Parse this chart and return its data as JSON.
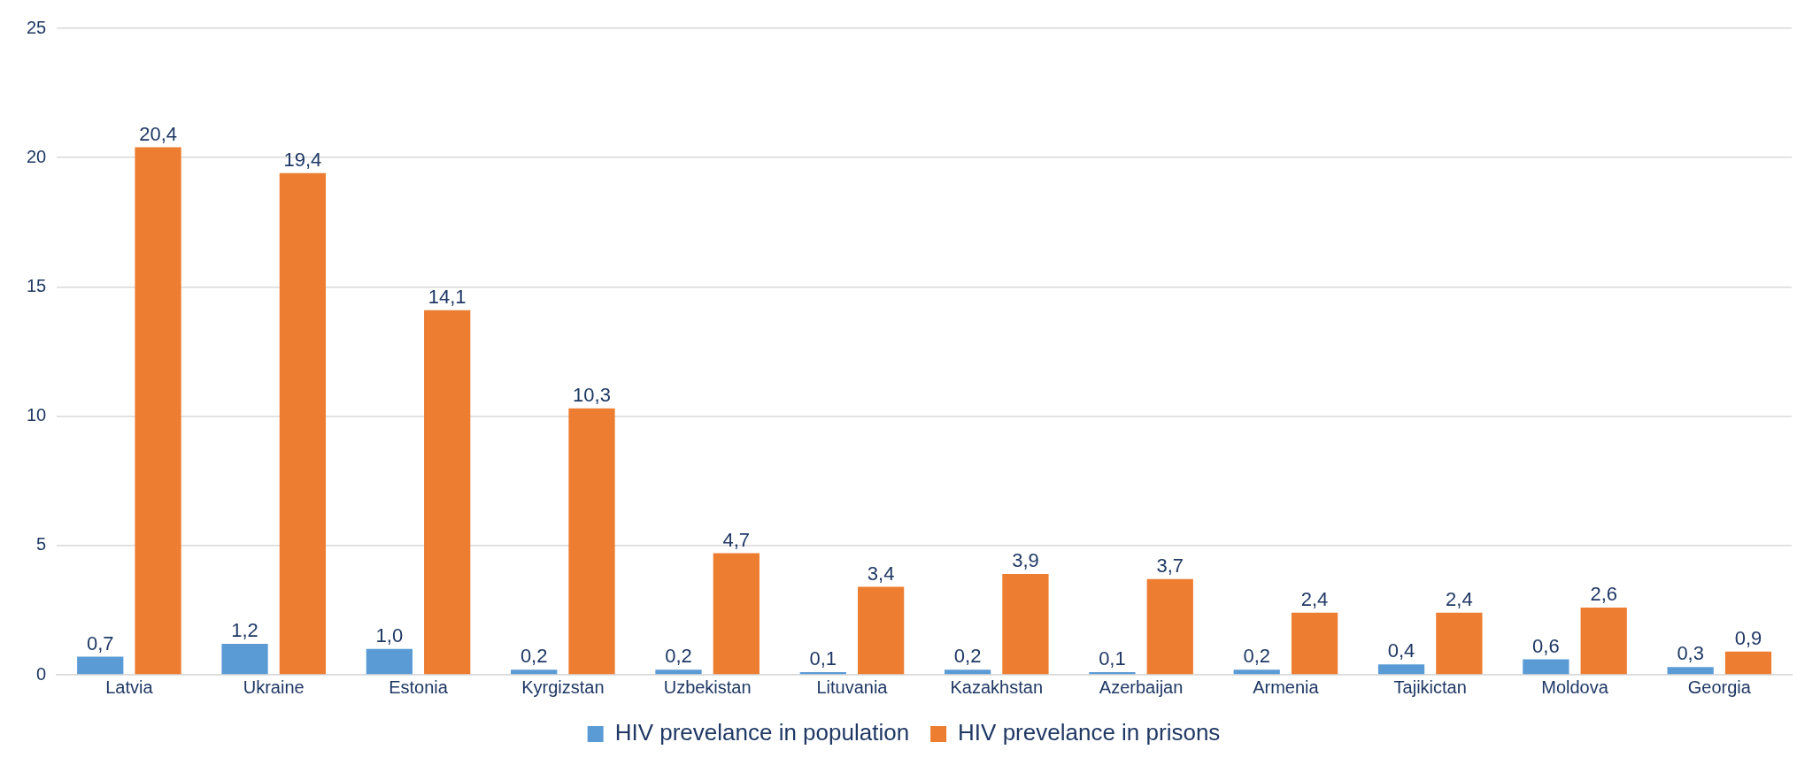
{
  "chart_data": {
    "type": "bar",
    "categories": [
      "Latvia",
      "Ukraine",
      "Estonia",
      "Kyrgizstan",
      "Uzbekistan",
      "Lituvania",
      "Kazakhstan",
      "Azerbaijan",
      "Armenia",
      "Tajikictan",
      "Moldova",
      "Georgia"
    ],
    "series": [
      {
        "name": "HIV prevelance in population",
        "color": "#5b9bd5",
        "values": [
          0.7,
          1.2,
          1.0,
          0.2,
          0.2,
          0.1,
          0.2,
          0.1,
          0.2,
          0.4,
          0.6,
          0.3
        ],
        "value_labels": [
          "0,7",
          "1,2",
          "1,0",
          "0,2",
          "0,2",
          "0,1",
          "0,2",
          "0,1",
          "0,2",
          "0,4",
          "0,6",
          "0,3"
        ]
      },
      {
        "name": "HIV prevelance in prisons",
        "color": "#ed7d31",
        "values": [
          20.4,
          19.4,
          14.1,
          10.3,
          4.7,
          3.4,
          3.9,
          3.7,
          2.4,
          2.4,
          2.6,
          0.9
        ],
        "value_labels": [
          "20,4",
          "19,4",
          "14,1",
          "10,3",
          "4,7",
          "3,4",
          "3,9",
          "3,7",
          "2,4",
          "2,4",
          "2,6",
          "0,9"
        ]
      }
    ],
    "ylim": [
      0,
      25
    ],
    "yticks": [
      0,
      5,
      10,
      15,
      20,
      25
    ],
    "grid": "y",
    "legend": "bottom"
  }
}
